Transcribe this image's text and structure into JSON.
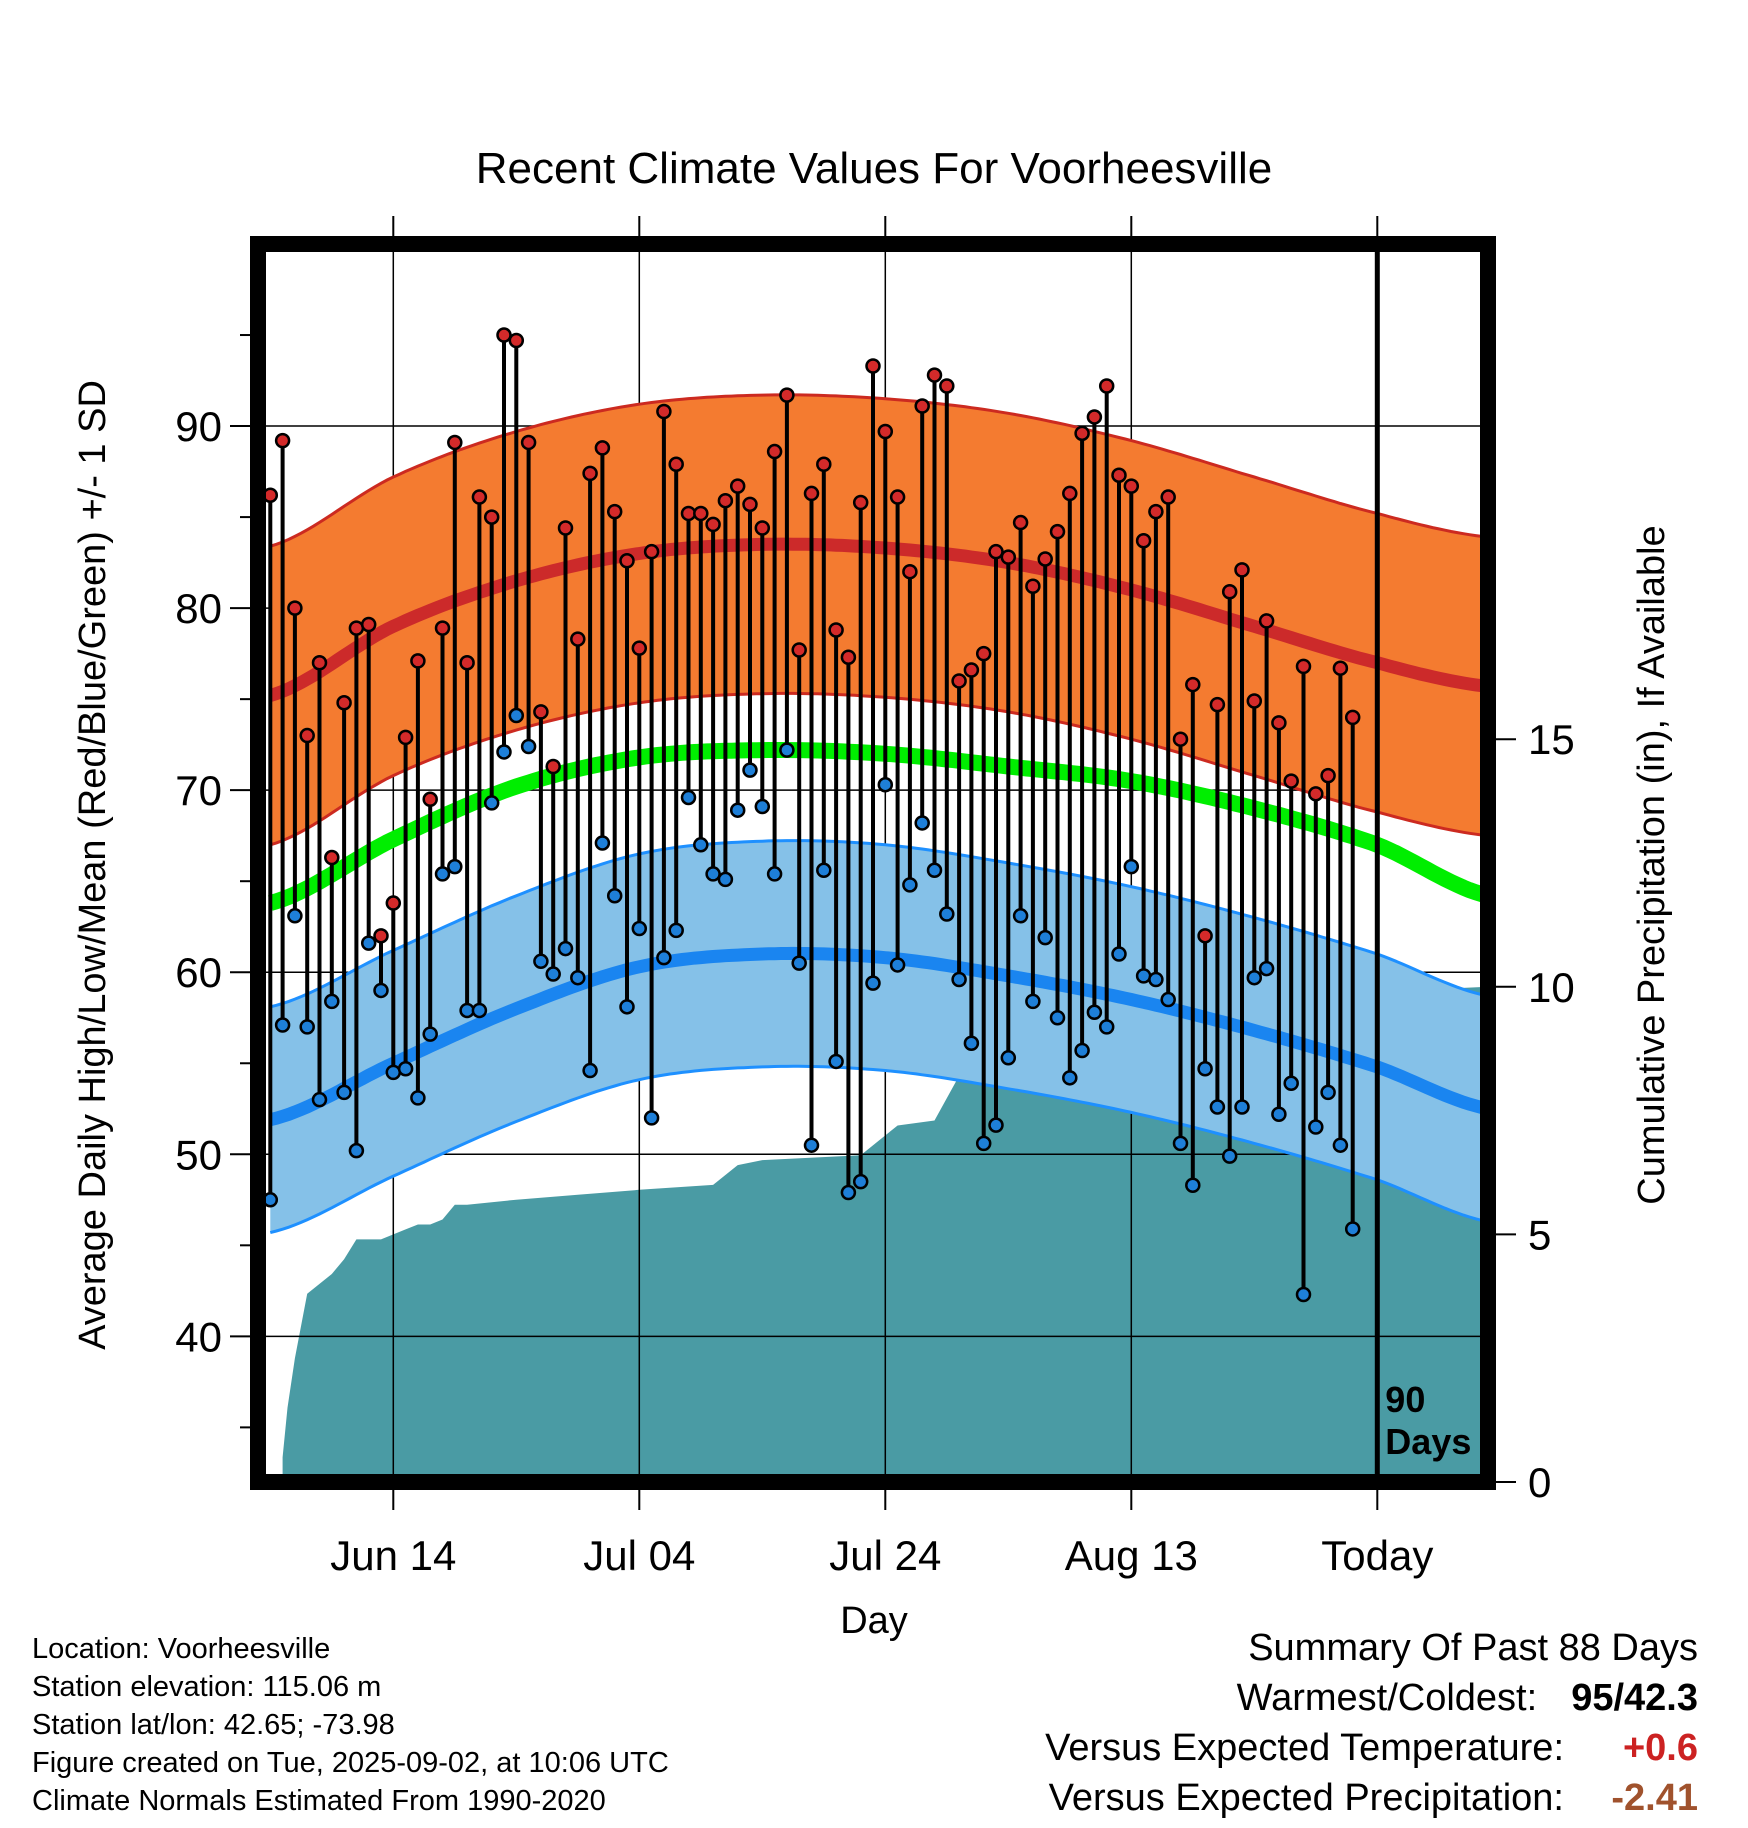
{
  "chart_data": {
    "type": "line",
    "title": "Recent Climate Values For Voorheesville",
    "xlabel": "Day",
    "ylabel": "Average Daily High/Low/Mean (Red/Blue/Green) +/- 1 SD",
    "ylabel2": "Cumulative Precipitation (in), If Available",
    "xlim": [
      -11,
      89
    ],
    "ylim": [
      32,
      100
    ],
    "ylim2": [
      0,
      25
    ],
    "yticks": [
      40,
      50,
      60,
      70,
      80,
      90
    ],
    "yticks_labels": [
      "40",
      "50",
      "60",
      "70",
      "80",
      "90"
    ],
    "y2ticks": [
      0,
      5,
      10,
      15
    ],
    "y2ticks_labels": [
      "0",
      "5",
      "10",
      "15"
    ],
    "xticks": [
      0,
      20,
      40,
      60,
      80
    ],
    "xtick_labels": [
      "Jun 14",
      "Jul 04",
      "Jul 24",
      "Aug 13",
      "Today"
    ],
    "today_marker": {
      "x": 80,
      "label_line1": "90",
      "label_line2": "Days"
    },
    "colors": {
      "high_band": "#f47b30",
      "high_edge": "#cc2a20",
      "high_mean": "#cc2a2a",
      "low_band": "#85c1e8",
      "low_edge": "#1e90ff",
      "low_mean": "#1a85f0",
      "mean": "#00ee00",
      "precip": "#4a9ba4",
      "high_dot": "#d42a2a",
      "low_dot": "#1e7fd8"
    },
    "normals": {
      "x": [
        -10,
        0,
        10,
        20,
        30,
        40,
        50,
        60,
        70,
        80,
        89
      ],
      "high_mean": [
        75.2,
        79.0,
        81.5,
        83.0,
        83.5,
        83.3,
        82.5,
        81.0,
        79.0,
        77.0,
        75.7
      ],
      "high_sd": 8.2,
      "low_mean": [
        51.9,
        55.0,
        58.0,
        60.3,
        61.0,
        60.8,
        59.8,
        58.5,
        56.8,
        54.8,
        52.5
      ],
      "low_sd": 6.2,
      "mean": [
        63.8,
        67.3,
        70.2,
        71.8,
        72.2,
        72.0,
        71.3,
        70.5,
        69.0,
        67.0,
        64.2
      ]
    },
    "daily": {
      "start_day": -10,
      "high": [
        86.2,
        89.2,
        80.0,
        73.0,
        77.0,
        66.3,
        74.8,
        78.9,
        79.1,
        62.0,
        63.8,
        72.9,
        77.1,
        69.5,
        78.9,
        89.1,
        77.0,
        86.1,
        85.0,
        95.0,
        94.7,
        89.1,
        74.3,
        71.3,
        84.4,
        78.3,
        87.4,
        88.8,
        85.3,
        82.6,
        77.8,
        83.1,
        90.8,
        87.9,
        85.2,
        85.2,
        84.6,
        85.9,
        86.7,
        85.7,
        84.4,
        88.6,
        91.7,
        77.7,
        86.3,
        87.9,
        78.8,
        77.3,
        85.8,
        93.3,
        89.7,
        86.1,
        82.0,
        91.1,
        92.8,
        92.2,
        76.0,
        76.6,
        77.5,
        83.1,
        82.8,
        84.7,
        81.2,
        82.7,
        84.2,
        86.3,
        89.6,
        90.5,
        92.2,
        87.3,
        86.7,
        83.7,
        85.3,
        86.1,
        72.8,
        75.8,
        62.0,
        74.7,
        80.9,
        82.1,
        74.9,
        79.3,
        73.7,
        70.5,
        76.8,
        69.8,
        70.8,
        76.7,
        74.0
      ],
      "low": [
        47.5,
        57.1,
        63.1,
        57.0,
        53.0,
        58.4,
        53.4,
        50.2,
        61.6,
        59.0,
        54.5,
        54.7,
        53.1,
        56.6,
        65.4,
        65.8,
        57.9,
        57.9,
        69.3,
        72.1,
        74.1,
        72.4,
        60.6,
        59.9,
        61.3,
        59.7,
        54.6,
        67.1,
        64.2,
        58.1,
        62.4,
        52.0,
        60.8,
        62.3,
        69.6,
        67.0,
        65.4,
        65.1,
        68.9,
        71.1,
        69.1,
        65.4,
        72.2,
        60.5,
        50.5,
        65.6,
        55.1,
        47.9,
        48.5,
        59.4,
        70.3,
        60.4,
        64.8,
        68.2,
        65.6,
        63.2,
        59.6,
        56.1,
        50.6,
        51.6,
        55.3,
        63.1,
        58.4,
        61.9,
        57.5,
        54.2,
        55.7,
        57.8,
        57.0,
        61.0,
        65.8,
        59.8,
        59.6,
        58.5,
        50.6,
        48.3,
        54.7,
        52.6,
        49.9,
        52.6,
        59.7,
        60.2,
        52.2,
        53.9,
        42.3,
        51.5,
        53.4,
        50.5,
        45.9
      ]
    },
    "precip": {
      "x": [
        -9,
        -8.6,
        -8,
        -7,
        -6,
        -5,
        -4,
        -3,
        -1,
        0,
        1,
        2,
        3,
        4,
        5,
        6,
        10,
        15,
        20,
        26,
        28,
        30,
        38,
        40,
        41,
        44,
        46,
        47,
        53,
        56,
        57,
        64,
        65,
        69,
        70,
        71,
        89
      ],
      "y": [
        0.5,
        1.5,
        2.5,
        3.8,
        4.0,
        4.2,
        4.5,
        4.9,
        4.9,
        5.0,
        5.1,
        5.2,
        5.2,
        5.3,
        5.6,
        5.6,
        5.7,
        5.8,
        5.9,
        6.0,
        6.4,
        6.5,
        6.6,
        7.0,
        7.2,
        7.3,
        8.2,
        8.2,
        8.2,
        8.9,
        8.9,
        8.9,
        9.1,
        9.1,
        9.5,
        9.8,
        10.0
      ]
    }
  },
  "info": {
    "location": "Location: Voorheesville",
    "elevation": "Station elevation: 115.06 m",
    "latlon": "Station lat/lon: 42.65; -73.98",
    "created": "Figure created on Tue, 2025-09-02, at 10:06 UTC",
    "normals": "Climate Normals Estimated From 1990-2020"
  },
  "summary": {
    "heading": "Summary Of Past 88 Days",
    "warm_cold_label": "Warmest/Coldest:",
    "warmest": "95",
    "coldest": "42.3",
    "temp_label": "Versus Expected Temperature:",
    "temp_value": "+0.6",
    "temp_color": "#cc2222",
    "precip_label": "Versus Expected Precipitation:",
    "precip_value": "-2.41",
    "precip_color": "#a0522d"
  }
}
